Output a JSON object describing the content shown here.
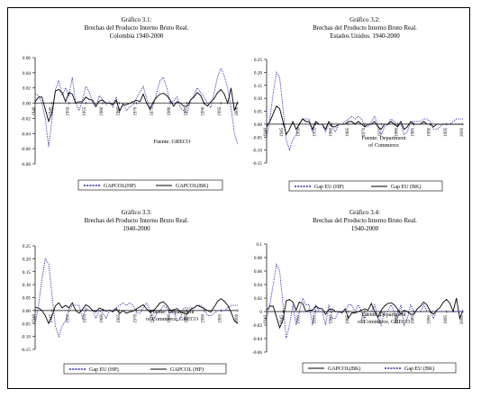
{
  "chart_data": [
    {
      "type": "line",
      "title": [
        "Gráfico 3.1:",
        "Brechas del Producto Interno Bruto Real.",
        "Colombia 1940-2000"
      ],
      "source": "Fuente: GRECO",
      "ylim": [
        -0.08,
        0.06
      ],
      "yticks": [
        "0.06",
        "0.04",
        "0.02",
        "0.00",
        "-0.02",
        "-0.04",
        "-0.06",
        "-0.08"
      ],
      "ytick_values": [
        0.06,
        0.04,
        0.02,
        0,
        -0.02,
        -0.04,
        -0.06,
        -0.08
      ],
      "xlim": [
        1940,
        2000
      ],
      "xticks": [
        "1940",
        "1945",
        "1950",
        "1955",
        "1960",
        "1965",
        "1970",
        "1975",
        "1980",
        "1985",
        "1990",
        "1995",
        "2000"
      ],
      "x": [
        1940,
        1941,
        1942,
        1943,
        1944,
        1945,
        1946,
        1947,
        1948,
        1949,
        1950,
        1951,
        1952,
        1953,
        1954,
        1955,
        1956,
        1957,
        1958,
        1959,
        1960,
        1961,
        1962,
        1963,
        1964,
        1965,
        1966,
        1967,
        1968,
        1969,
        1970,
        1971,
        1972,
        1973,
        1974,
        1975,
        1976,
        1977,
        1978,
        1979,
        1980,
        1981,
        1982,
        1983,
        1984,
        1985,
        1986,
        1987,
        1988,
        1989,
        1990,
        1991,
        1992,
        1993,
        1994,
        1995,
        1996,
        1997,
        1998,
        1999,
        2000
      ],
      "series": [
        {
          "name": "GAPCOL(HP)",
          "style": "dotted",
          "values": [
            0.012,
            0.01,
            0.0,
            -0.02,
            -0.058,
            -0.02,
            0.018,
            0.03,
            0.01,
            0.02,
            0.01,
            0.034,
            0.0,
            -0.01,
            0.004,
            0.022,
            0.015,
            0.0,
            -0.005,
            0.01,
            0.004,
            -0.002,
            0.002,
            -0.005,
            0.008,
            -0.012,
            0.0,
            -0.01,
            -0.005,
            -0.002,
            0.006,
            0.015,
            0.022,
            0.006,
            -0.006,
            -0.002,
            0.014,
            0.03,
            0.034,
            0.02,
            0.0,
            0.003,
            0.008,
            -0.006,
            -0.01,
            -0.014,
            0.004,
            0.01,
            0.02,
            0.014,
            0.008,
            0.0,
            -0.006,
            0.014,
            0.035,
            0.046,
            0.036,
            0.02,
            -0.006,
            -0.04,
            -0.055
          ]
        },
        {
          "name": "GAPCOL(BK)",
          "style": "solid",
          "values": [
            0.002,
            0.008,
            0.008,
            -0.008,
            -0.024,
            -0.012,
            0.016,
            0.018,
            0.014,
            0.002,
            0.014,
            0.012,
            0.0,
            0.002,
            0.002,
            0.008,
            0.005,
            0.004,
            -0.004,
            0.003,
            0.004,
            0.0,
            0.0,
            -0.002,
            0.004,
            -0.01,
            -0.002,
            -0.002,
            0.0,
            0.002,
            0.004,
            0.002,
            0.012,
            0.0,
            -0.008,
            0.002,
            0.008,
            0.012,
            0.013,
            0.01,
            0.004,
            -0.004,
            0.002,
            0.0,
            -0.004,
            -0.004,
            0.004,
            0.008,
            0.014,
            0.01,
            0.0,
            -0.004,
            0.002,
            0.006,
            0.014,
            0.018,
            0.012,
            0.0,
            0.02,
            -0.01,
            0.002
          ]
        }
      ]
    },
    {
      "type": "line",
      "title": [
        "Gráfico 3.2:",
        "Brechas del Producto Interno Bruto Real.",
        "Estados Unidos. 1940-2000"
      ],
      "source": "Fuente: Department of Commerce",
      "ylim": [
        -0.15,
        0.25
      ],
      "yticks": [
        "0.25",
        "0.20",
        "0.15",
        "0.10",
        "0.05",
        "0.00",
        "-0.05",
        "-0.10",
        "-0.15"
      ],
      "ytick_values": [
        0.25,
        0.2,
        0.15,
        0.1,
        0.05,
        0,
        -0.05,
        -0.1,
        -0.15
      ],
      "xlim": [
        1940,
        2000
      ],
      "xticks": [
        "1940",
        "1945",
        "1950",
        "1955",
        "1960",
        "1965",
        "1970",
        "1975",
        "1980",
        "1985",
        "1990",
        "1995",
        "2000"
      ],
      "x": [
        1940,
        1941,
        1942,
        1943,
        1944,
        1945,
        1946,
        1947,
        1948,
        1949,
        1950,
        1951,
        1952,
        1953,
        1954,
        1955,
        1956,
        1957,
        1958,
        1959,
        1960,
        1961,
        1962,
        1963,
        1964,
        1965,
        1966,
        1967,
        1968,
        1969,
        1970,
        1971,
        1972,
        1973,
        1974,
        1975,
        1976,
        1977,
        1978,
        1979,
        1980,
        1981,
        1982,
        1983,
        1984,
        1985,
        1986,
        1987,
        1988,
        1989,
        1990,
        1991,
        1992,
        1993,
        1994,
        1995,
        1996,
        1997,
        1998,
        1999,
        2000
      ],
      "series": [
        {
          "name": "Gap EU (HP)",
          "style": "dotted",
          "values": [
            -0.05,
            0.02,
            0.12,
            0.2,
            0.18,
            0.06,
            -0.06,
            -0.1,
            -0.06,
            -0.04,
            0.0,
            0.02,
            0.02,
            0.02,
            -0.03,
            0.01,
            0.0,
            0.0,
            -0.03,
            0.0,
            -0.01,
            -0.03,
            0.0,
            0.0,
            0.01,
            0.02,
            0.03,
            0.02,
            0.03,
            0.02,
            -0.01,
            -0.01,
            0.01,
            0.03,
            0.0,
            -0.04,
            -0.01,
            0.0,
            0.02,
            0.01,
            -0.01,
            0.0,
            -0.04,
            -0.03,
            0.01,
            0.01,
            0.01,
            0.01,
            0.02,
            0.02,
            0.01,
            -0.02,
            -0.02,
            -0.01,
            0.0,
            0.0,
            0.0,
            0.01,
            0.02,
            0.02,
            0.02
          ]
        },
        {
          "name": "Gap EU (BK)",
          "style": "solid",
          "values": [
            -0.01,
            0.01,
            0.04,
            0.07,
            0.06,
            0.01,
            -0.04,
            -0.02,
            0.01,
            -0.02,
            0.0,
            0.02,
            0.01,
            0.01,
            -0.02,
            0.01,
            0.0,
            0.0,
            -0.02,
            0.01,
            -0.01,
            -0.01,
            0.0,
            0.0,
            0.0,
            0.01,
            0.01,
            0.0,
            0.01,
            0.0,
            -0.01,
            0.0,
            0.0,
            0.01,
            -0.01,
            -0.02,
            0.0,
            0.0,
            0.01,
            0.0,
            -0.01,
            0.01,
            -0.02,
            -0.01,
            0.01,
            0.0,
            0.0,
            0.0,
            0.01,
            0.0,
            0.0,
            -0.01,
            0.0,
            0.0,
            0.0,
            0.0,
            0.0,
            0.0,
            0.0,
            0.0,
            0.0
          ]
        }
      ]
    },
    {
      "type": "line",
      "title": [
        "Gráfico 3.3:",
        "Brechas del Producto Interno Bruto Real.",
        "1940-2000"
      ],
      "source": "Fuente: Department of Commerce, GRECO",
      "ylim": [
        -0.15,
        0.25
      ],
      "yticks": [
        "0.25",
        "0.20",
        "0.15",
        "0.10",
        "0.05",
        "0.00",
        "-0.05",
        "-0.10",
        "-0.15"
      ],
      "ytick_values": [
        0.25,
        0.2,
        0.15,
        0.1,
        0.05,
        0,
        -0.05,
        -0.1,
        -0.15
      ],
      "xlim": [
        1940,
        2000
      ],
      "xticks": [
        "1940",
        "1945",
        "1950",
        "1955",
        "1960",
        "1965",
        "1970",
        "1975",
        "1980",
        "1985",
        "1990",
        "1995",
        "2000"
      ],
      "x": [
        1940,
        1941,
        1942,
        1943,
        1944,
        1945,
        1946,
        1947,
        1948,
        1949,
        1950,
        1951,
        1952,
        1953,
        1954,
        1955,
        1956,
        1957,
        1958,
        1959,
        1960,
        1961,
        1962,
        1963,
        1964,
        1965,
        1966,
        1967,
        1968,
        1969,
        1970,
        1971,
        1972,
        1973,
        1974,
        1975,
        1976,
        1977,
        1978,
        1979,
        1980,
        1981,
        1982,
        1983,
        1984,
        1985,
        1986,
        1987,
        1988,
        1989,
        1990,
        1991,
        1992,
        1993,
        1994,
        1995,
        1996,
        1997,
        1998,
        1999,
        2000
      ],
      "series": [
        {
          "name": "Gap EU (HP)",
          "style": "dotted",
          "values": [
            -0.05,
            0.02,
            0.12,
            0.2,
            0.18,
            0.06,
            -0.06,
            -0.1,
            -0.06,
            -0.04,
            0.0,
            0.02,
            0.02,
            0.02,
            -0.03,
            0.01,
            0.0,
            0.0,
            -0.03,
            0.0,
            -0.01,
            -0.03,
            0.0,
            0.0,
            0.01,
            0.02,
            0.03,
            0.02,
            0.03,
            0.02,
            -0.01,
            -0.01,
            0.01,
            0.03,
            0.0,
            -0.04,
            -0.01,
            0.0,
            0.02,
            0.01,
            -0.01,
            0.0,
            -0.04,
            -0.03,
            0.01,
            0.01,
            0.01,
            0.01,
            0.02,
            0.02,
            0.01,
            -0.02,
            -0.02,
            -0.01,
            0.0,
            0.0,
            0.0,
            0.01,
            0.02,
            0.02,
            0.02
          ]
        },
        {
          "name": "GAPCOL (HP)",
          "style": "solid",
          "values": [
            0.012,
            0.01,
            0.0,
            -0.02,
            -0.05,
            -0.02,
            0.018,
            0.03,
            0.01,
            0.02,
            0.01,
            0.03,
            0.0,
            -0.01,
            0.004,
            0.022,
            0.015,
            0.0,
            -0.005,
            0.01,
            0.004,
            -0.002,
            0.002,
            -0.005,
            0.008,
            -0.012,
            0.0,
            -0.01,
            -0.005,
            -0.002,
            0.006,
            0.015,
            0.022,
            0.006,
            -0.006,
            -0.002,
            0.014,
            0.03,
            0.034,
            0.02,
            0.0,
            0.003,
            0.008,
            -0.006,
            -0.01,
            -0.014,
            0.004,
            0.01,
            0.02,
            0.014,
            0.008,
            0.0,
            -0.006,
            0.014,
            0.035,
            0.046,
            0.036,
            0.02,
            -0.006,
            -0.04,
            -0.05
          ]
        }
      ]
    },
    {
      "type": "line",
      "title": [
        "Gráfico 3.4:",
        "Brechas del Producto Interno Bruto Real.",
        "1940-2000"
      ],
      "source": "Fuente: Department of Commerce, GRECO",
      "ylim": [
        -0.06,
        0.1
      ],
      "yticks": [
        "0.1",
        "0.08",
        "0.06",
        "0.04",
        "0.02",
        "0",
        "-0.02",
        "-0.04",
        "-0.06"
      ],
      "ytick_values": [
        0.1,
        0.08,
        0.06,
        0.04,
        0.02,
        0,
        -0.02,
        -0.04,
        -0.06
      ],
      "xlim": [
        1940,
        2000
      ],
      "xticks": [
        "1940",
        "1945",
        "1950",
        "1955",
        "1960",
        "1965",
        "1970",
        "1975",
        "1980",
        "1985",
        "1990",
        "1995",
        "2000"
      ],
      "x": [
        1940,
        1941,
        1942,
        1943,
        1944,
        1945,
        1946,
        1947,
        1948,
        1949,
        1950,
        1951,
        1952,
        1953,
        1954,
        1955,
        1956,
        1957,
        1958,
        1959,
        1960,
        1961,
        1962,
        1963,
        1964,
        1965,
        1966,
        1967,
        1968,
        1969,
        1970,
        1971,
        1972,
        1973,
        1974,
        1975,
        1976,
        1977,
        1978,
        1979,
        1980,
        1981,
        1982,
        1983,
        1984,
        1985,
        1986,
        1987,
        1988,
        1989,
        1990,
        1991,
        1992,
        1993,
        1994,
        1995,
        1996,
        1997,
        1998,
        1999,
        2000
      ],
      "series": [
        {
          "name": "GAPCOL(BK)",
          "style": "solid",
          "values": [
            0.002,
            0.008,
            0.008,
            -0.008,
            -0.024,
            -0.012,
            0.016,
            0.018,
            0.014,
            0.002,
            0.014,
            0.012,
            0.0,
            0.002,
            0.002,
            0.008,
            0.005,
            0.004,
            -0.004,
            0.003,
            0.004,
            0.0,
            0.0,
            -0.002,
            0.004,
            -0.01,
            -0.002,
            -0.002,
            0.0,
            0.002,
            0.004,
            0.002,
            0.012,
            0.0,
            -0.008,
            0.002,
            0.008,
            0.012,
            0.013,
            0.01,
            0.004,
            -0.004,
            0.002,
            0.0,
            -0.004,
            -0.004,
            0.004,
            0.008,
            0.014,
            0.01,
            0.0,
            -0.004,
            0.002,
            0.006,
            0.014,
            0.018,
            0.012,
            0.0,
            0.02,
            -0.01,
            0.002
          ]
        },
        {
          "name": "Gap EU (BK)",
          "style": "dotted",
          "values": [
            -0.01,
            0.01,
            0.04,
            0.07,
            0.06,
            0.01,
            -0.04,
            -0.02,
            0.01,
            -0.02,
            0.0,
            0.02,
            0.01,
            0.01,
            -0.02,
            0.01,
            0.0,
            0.0,
            -0.02,
            0.01,
            -0.01,
            -0.01,
            0.0,
            0.0,
            0.0,
            0.01,
            0.01,
            0.0,
            0.01,
            0.0,
            -0.01,
            0.0,
            0.0,
            0.01,
            -0.01,
            -0.02,
            0.0,
            0.0,
            0.01,
            0.0,
            -0.01,
            0.01,
            -0.02,
            -0.01,
            0.01,
            0.0,
            0.0,
            0.0,
            0.01,
            0.0,
            0.0,
            -0.01,
            0.0,
            0.0,
            0.0,
            0.0,
            0.0,
            0.0,
            0.0,
            0.0,
            0.0
          ]
        }
      ]
    }
  ]
}
